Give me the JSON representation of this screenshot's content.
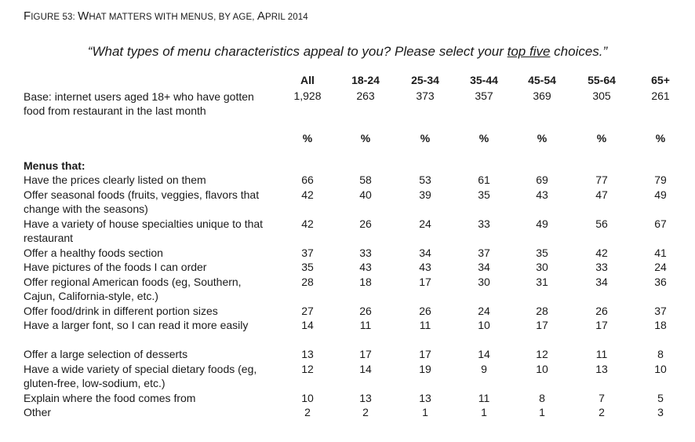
{
  "figure": {
    "num": "F",
    "num_rest": "IGURE 53: ",
    "w1": "W",
    "t1": "HAT MATTERS WITH MENUS, BY AGE, ",
    "w2": "A",
    "t2": "PRIL 2014"
  },
  "question": {
    "pre": "“What types of menu characteristics appeal to you? Please select your ",
    "underlined": "top five",
    "post": " choices.”"
  },
  "chart_data": {
    "type": "table",
    "columns": [
      "All",
      "18-24",
      "25-34",
      "35-44",
      "45-54",
      "55-64",
      "65+"
    ],
    "base": {
      "label": "Base: internet users aged 18+ who have gotten food from restaurant in the last month",
      "values": [
        "1,928",
        "263",
        "373",
        "357",
        "369",
        "305",
        "261"
      ]
    },
    "unit_row": [
      "%",
      "%",
      "%",
      "%",
      "%",
      "%",
      "%"
    ],
    "section_label": "Menus that:",
    "rows": [
      {
        "label": "Have the prices clearly listed on them",
        "values": [
          66,
          58,
          53,
          61,
          69,
          77,
          79
        ]
      },
      {
        "label": "Offer seasonal foods (fruits, veggies, flavors that change with the seasons)",
        "values": [
          42,
          40,
          39,
          35,
          43,
          47,
          49
        ]
      },
      {
        "label": "Have a variety of house specialties unique to that restaurant",
        "values": [
          42,
          26,
          24,
          33,
          49,
          56,
          67
        ]
      },
      {
        "label": "Offer a healthy foods section",
        "values": [
          37,
          33,
          34,
          37,
          35,
          42,
          41
        ]
      },
      {
        "label": "Have pictures of the foods I can order",
        "values": [
          35,
          43,
          43,
          34,
          30,
          33,
          24
        ]
      },
      {
        "label": "Offer regional American foods (eg, Southern, Cajun, California-style, etc.)",
        "values": [
          28,
          18,
          17,
          30,
          31,
          34,
          36
        ]
      },
      {
        "label": "Offer food/drink in different portion sizes",
        "values": [
          27,
          26,
          26,
          24,
          28,
          26,
          37
        ]
      },
      {
        "label": "Have a larger font, so I can read it more easily",
        "values": [
          14,
          11,
          11,
          10,
          17,
          17,
          18
        ]
      },
      {
        "label": "Offer a large selection of desserts",
        "values": [
          13,
          17,
          17,
          14,
          12,
          11,
          8
        ]
      },
      {
        "label": "Have a wide variety of special dietary foods (eg, gluten-free, low-sodium, etc.)",
        "values": [
          12,
          14,
          19,
          9,
          10,
          13,
          10
        ]
      },
      {
        "label": "Explain where the food comes from",
        "values": [
          10,
          13,
          13,
          11,
          8,
          7,
          5
        ]
      },
      {
        "label": "Other",
        "values": [
          2,
          2,
          1,
          1,
          1,
          2,
          3
        ]
      }
    ]
  }
}
